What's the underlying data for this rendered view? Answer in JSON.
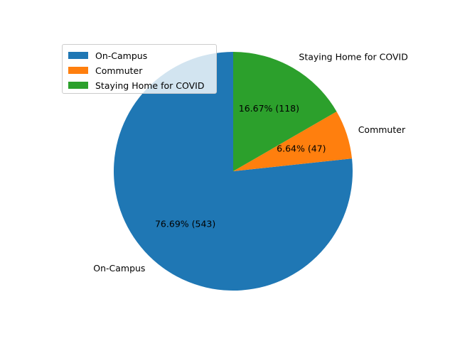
{
  "chart_data": {
    "type": "pie",
    "title": "",
    "categories": [
      "On-Campus",
      "Commuter",
      "Staying Home for COVID"
    ],
    "values": [
      543,
      47,
      118
    ],
    "percent_labels": [
      "76.69%  (543)",
      "6.64%  (47)",
      "16.67%  (118)"
    ],
    "colors": [
      "#1f77b4",
      "#ff7f0e",
      "#2ca02c"
    ],
    "legend": {
      "placement": "upper-left",
      "entries": [
        "On-Campus",
        "Commuter",
        "Staying Home for COVID"
      ]
    }
  }
}
